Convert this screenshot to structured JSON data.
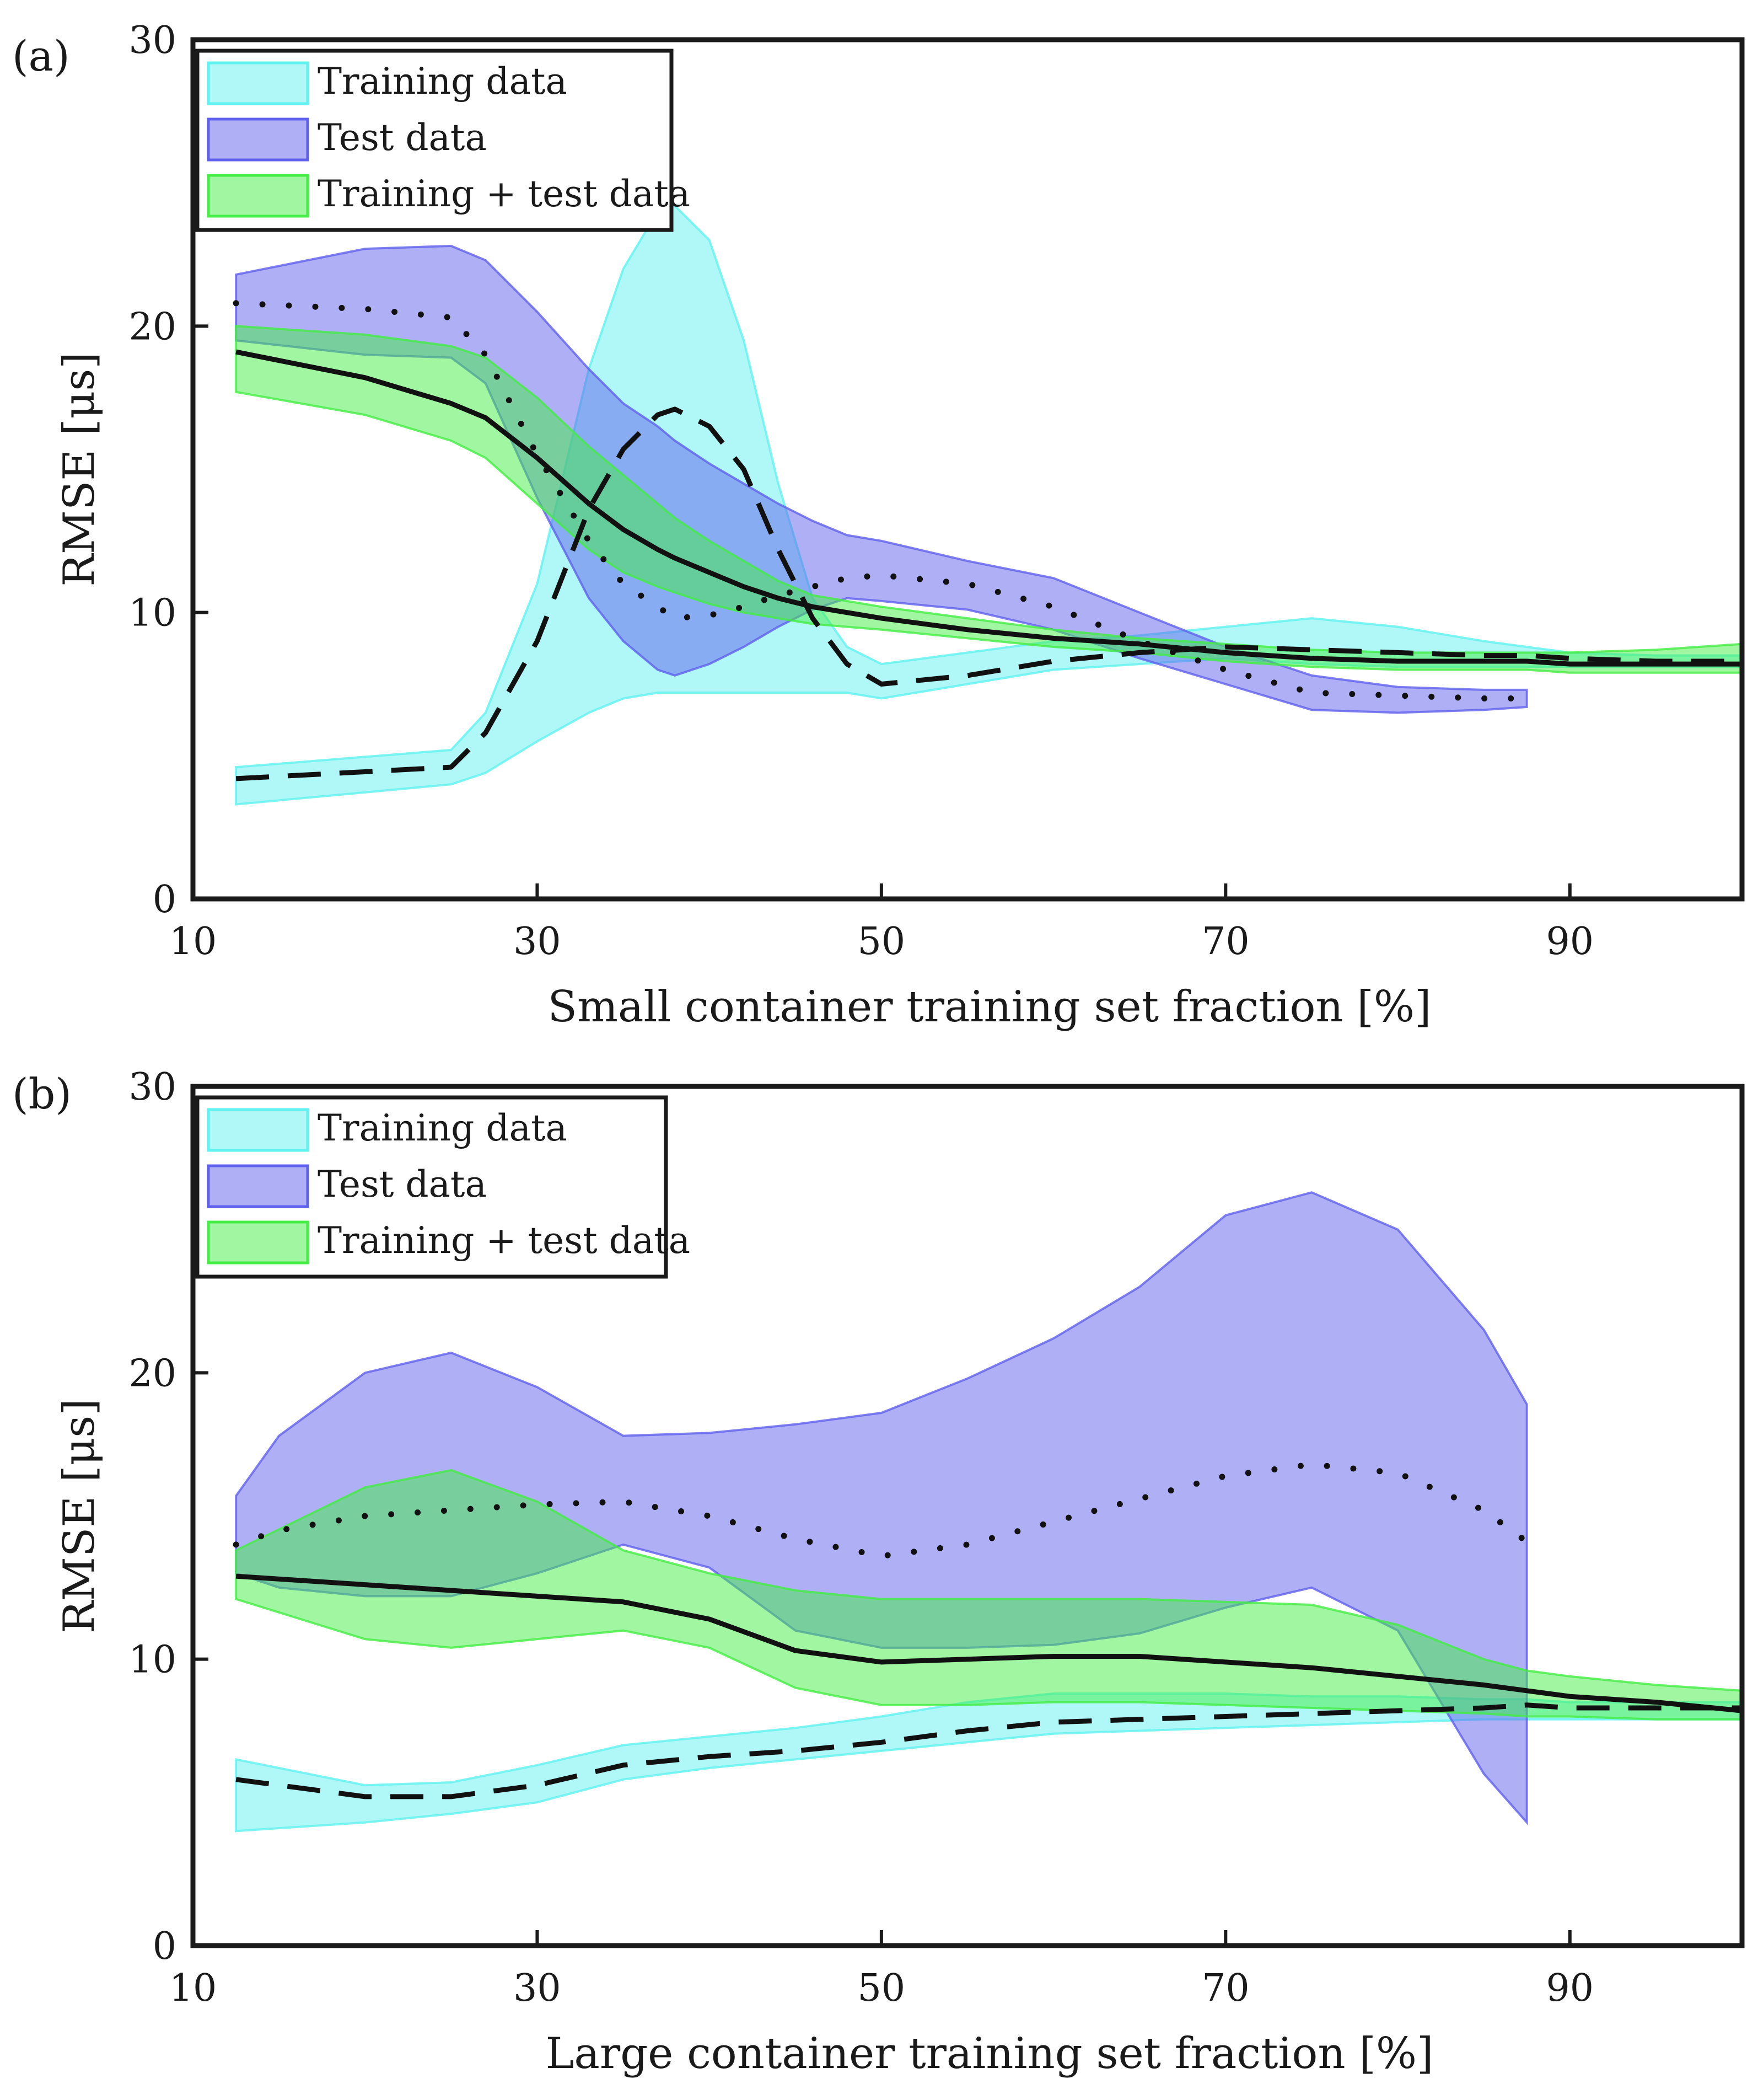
{
  "chart_data": [
    {
      "type": "area",
      "panel_label": "(a)",
      "xlabel": "Small container training set fraction [%]",
      "ylabel": "RMSE [μs]",
      "xlim": [
        10,
        100
      ],
      "ylim": [
        0,
        30
      ],
      "xticks": [
        10,
        30,
        50,
        70,
        90
      ],
      "yticks": [
        0,
        10,
        20,
        30
      ],
      "x": [
        12.5,
        25,
        27,
        30,
        33,
        35,
        37,
        38,
        40,
        42,
        44,
        46,
        48,
        50,
        55,
        60,
        65,
        70,
        75,
        80,
        85,
        87.5,
        90,
        95,
        100
      ],
      "legend": {
        "position": "top-left",
        "entries": [
          "Training data",
          "Test data",
          "Training + test data"
        ]
      },
      "series": [
        {
          "name": "Training data",
          "color": "#5ff2f0",
          "line": "dashed",
          "x": [
            12.5,
            25,
            27,
            30,
            33,
            35,
            37,
            38,
            40,
            42,
            44,
            46,
            48,
            50,
            55,
            60,
            65,
            70,
            75,
            80,
            85,
            87.5,
            90,
            95,
            100
          ],
          "mean": [
            4.2,
            4.6,
            5.8,
            9.0,
            13.6,
            15.7,
            16.9,
            17.1,
            16.5,
            15.0,
            12.2,
            9.8,
            8.2,
            7.5,
            7.8,
            8.3,
            8.6,
            8.8,
            8.7,
            8.6,
            8.5,
            8.5,
            8.4,
            8.3,
            8.3
          ],
          "upper": [
            4.6,
            5.2,
            6.5,
            11.0,
            18.5,
            22.0,
            24.0,
            24.2,
            23.0,
            19.5,
            14.5,
            10.5,
            8.8,
            8.2,
            8.6,
            9.0,
            9.2,
            9.5,
            9.8,
            9.5,
            9.0,
            8.8,
            8.6,
            8.5,
            8.5
          ],
          "lower": [
            3.3,
            4.0,
            4.4,
            5.5,
            6.5,
            7.0,
            7.2,
            7.2,
            7.2,
            7.2,
            7.2,
            7.2,
            7.2,
            7.0,
            7.5,
            8.0,
            8.2,
            8.4,
            8.2,
            8.1,
            8.1,
            8.1,
            8.1,
            8.1,
            8.1
          ]
        },
        {
          "name": "Test data",
          "color": "#6060ee",
          "line": "dotted",
          "x": [
            12.5,
            20,
            25,
            27,
            30,
            33,
            35,
            37,
            38,
            40,
            42,
            44,
            46,
            48,
            50,
            55,
            60,
            65,
            70,
            75,
            80,
            85,
            87.5
          ],
          "mean": [
            20.8,
            20.6,
            20.3,
            19.0,
            15.5,
            12.5,
            11.0,
            10.2,
            9.8,
            9.9,
            10.2,
            10.6,
            10.9,
            11.2,
            11.3,
            11.0,
            10.2,
            9.0,
            8.0,
            7.2,
            7.1,
            7.0,
            7.0
          ],
          "upper": [
            21.8,
            22.7,
            22.8,
            22.3,
            20.5,
            18.5,
            17.3,
            16.5,
            16.0,
            15.2,
            14.5,
            13.8,
            13.2,
            12.7,
            12.5,
            11.8,
            11.2,
            10.0,
            8.8,
            7.8,
            7.4,
            7.3,
            7.3
          ],
          "lower": [
            19.5,
            19.0,
            18.9,
            18.0,
            14.0,
            10.5,
            9.0,
            8.0,
            7.8,
            8.2,
            8.8,
            9.5,
            10.1,
            10.5,
            10.4,
            10.1,
            9.4,
            8.4,
            7.5,
            6.6,
            6.5,
            6.6,
            6.7
          ]
        },
        {
          "name": "Training + test data",
          "color": "#44ee44",
          "line": "solid",
          "x": [
            12.5,
            20,
            25,
            27,
            30,
            33,
            35,
            37,
            38,
            40,
            42,
            44,
            46,
            48,
            50,
            55,
            60,
            65,
            70,
            75,
            80,
            85,
            87.5,
            90,
            95,
            100
          ],
          "mean": [
            19.1,
            18.2,
            17.3,
            16.8,
            15.4,
            13.8,
            12.9,
            12.2,
            11.9,
            11.4,
            10.9,
            10.5,
            10.2,
            10.0,
            9.8,
            9.4,
            9.1,
            8.9,
            8.6,
            8.4,
            8.3,
            8.3,
            8.3,
            8.2,
            8.2,
            8.2
          ],
          "upper": [
            20.0,
            19.7,
            19.3,
            18.9,
            17.5,
            15.8,
            14.8,
            13.8,
            13.3,
            12.5,
            11.8,
            11.1,
            10.6,
            10.4,
            10.2,
            9.8,
            9.4,
            9.1,
            8.9,
            8.7,
            8.6,
            8.6,
            8.6,
            8.6,
            8.7,
            8.9
          ],
          "lower": [
            17.7,
            16.9,
            16.0,
            15.4,
            13.8,
            12.2,
            11.4,
            10.9,
            10.7,
            10.3,
            10.0,
            9.8,
            9.6,
            9.5,
            9.4,
            9.1,
            8.8,
            8.6,
            8.3,
            8.1,
            8.0,
            8.0,
            8.0,
            7.9,
            7.9,
            7.9
          ]
        }
      ]
    },
    {
      "type": "area",
      "panel_label": "(b)",
      "xlabel": "Large container training set fraction [%]",
      "ylabel": "RMSE [μs]",
      "xlim": [
        10,
        100
      ],
      "ylim": [
        0,
        30
      ],
      "xticks": [
        10,
        30,
        50,
        70,
        90
      ],
      "yticks": [
        0,
        10,
        20,
        30
      ],
      "legend": {
        "position": "top-left",
        "entries": [
          "Training data",
          "Test data",
          "Training + test data"
        ]
      },
      "series": [
        {
          "name": "Training data",
          "color": "#5ff2f0",
          "line": "dashed",
          "x": [
            12.5,
            20,
            25,
            30,
            35,
            40,
            45,
            50,
            55,
            60,
            65,
            70,
            75,
            80,
            85,
            87.5,
            90,
            95,
            100
          ],
          "mean": [
            5.8,
            5.2,
            5.2,
            5.6,
            6.3,
            6.6,
            6.8,
            7.1,
            7.5,
            7.8,
            7.9,
            8.0,
            8.1,
            8.2,
            8.3,
            8.4,
            8.3,
            8.3,
            8.3
          ],
          "upper": [
            6.5,
            5.6,
            5.7,
            6.3,
            7.0,
            7.3,
            7.6,
            8.0,
            8.5,
            8.8,
            8.8,
            8.8,
            8.7,
            8.7,
            8.6,
            8.6,
            8.5,
            8.5,
            8.5
          ],
          "lower": [
            4.0,
            4.3,
            4.6,
            5.0,
            5.8,
            6.2,
            6.5,
            6.8,
            7.1,
            7.4,
            7.5,
            7.6,
            7.7,
            7.8,
            7.9,
            7.9,
            7.9,
            7.9,
            7.9
          ]
        },
        {
          "name": "Test data",
          "color": "#6060ee",
          "line": "dotted",
          "x": [
            12.5,
            15,
            20,
            25,
            30,
            35,
            40,
            45,
            50,
            55,
            60,
            65,
            70,
            75,
            80,
            85,
            87.5
          ],
          "mean": [
            14.0,
            14.5,
            15.0,
            15.2,
            15.4,
            15.5,
            15.0,
            14.2,
            13.6,
            14.0,
            14.8,
            15.6,
            16.4,
            16.8,
            16.5,
            15.2,
            14.1
          ],
          "upper": [
            15.7,
            17.8,
            20.0,
            20.7,
            19.5,
            17.8,
            17.9,
            18.2,
            18.6,
            19.8,
            21.2,
            23.0,
            25.5,
            26.3,
            25.0,
            21.5,
            18.9
          ],
          "lower": [
            13.0,
            12.5,
            12.2,
            12.2,
            13.0,
            14.0,
            13.2,
            11.0,
            10.4,
            10.4,
            10.5,
            10.9,
            11.8,
            12.5,
            11.0,
            6.0,
            4.3
          ]
        },
        {
          "name": "Training + test data",
          "color": "#44ee44",
          "line": "solid",
          "x": [
            12.5,
            20,
            25,
            30,
            35,
            40,
            45,
            50,
            55,
            60,
            65,
            70,
            75,
            80,
            85,
            87.5,
            90,
            95,
            100
          ],
          "mean": [
            12.9,
            12.6,
            12.4,
            12.2,
            12.0,
            11.4,
            10.3,
            9.9,
            10.0,
            10.1,
            10.1,
            9.9,
            9.7,
            9.4,
            9.1,
            8.9,
            8.7,
            8.5,
            8.2
          ],
          "upper": [
            13.8,
            16.0,
            16.6,
            15.5,
            13.8,
            13.0,
            12.4,
            12.1,
            12.1,
            12.1,
            12.1,
            12.0,
            11.9,
            11.2,
            10.0,
            9.6,
            9.4,
            9.1,
            8.9
          ],
          "lower": [
            12.1,
            10.7,
            10.4,
            10.7,
            11.0,
            10.4,
            9.0,
            8.4,
            8.4,
            8.5,
            8.5,
            8.4,
            8.3,
            8.2,
            8.1,
            8.0,
            8.0,
            7.9,
            7.9
          ]
        }
      ]
    }
  ]
}
